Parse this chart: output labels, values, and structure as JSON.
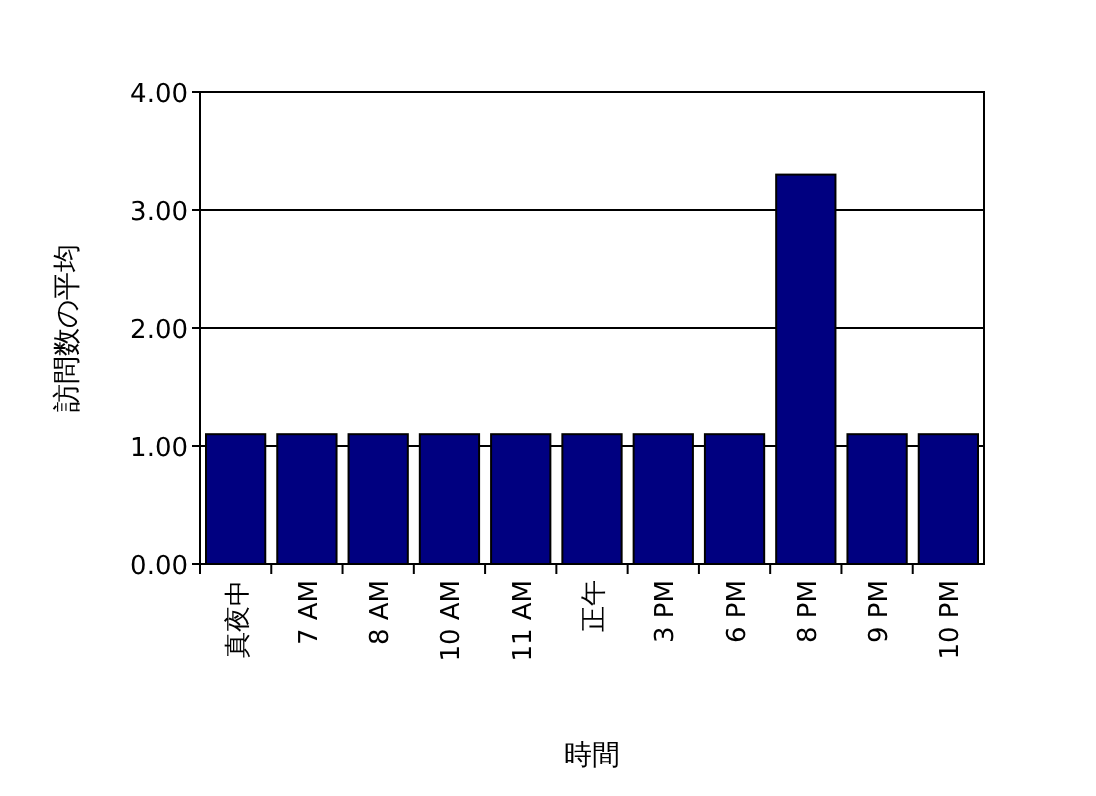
{
  "chart_data": {
    "type": "bar",
    "xlabel": "時間",
    "ylabel": "訪問数の平均",
    "categories": [
      "真夜中",
      "7 AM",
      "8 AM",
      "10 AM",
      "11 AM",
      "正午",
      "3 PM",
      "6 PM",
      "8 PM",
      "9 PM",
      "10 PM"
    ],
    "values": [
      1.1,
      1.1,
      1.1,
      1.1,
      1.1,
      1.1,
      1.1,
      1.1,
      3.3,
      1.1,
      1.1
    ],
    "color": "#000080",
    "ylim": [
      0,
      4
    ],
    "yticks": [
      {
        "value": 0,
        "label": "0.00"
      },
      {
        "value": 1,
        "label": "1.00"
      },
      {
        "value": 2,
        "label": "2.00"
      },
      {
        "value": 3,
        "label": "3.00"
      },
      {
        "value": 4,
        "label": "4.00"
      }
    ],
    "grid": "y"
  }
}
